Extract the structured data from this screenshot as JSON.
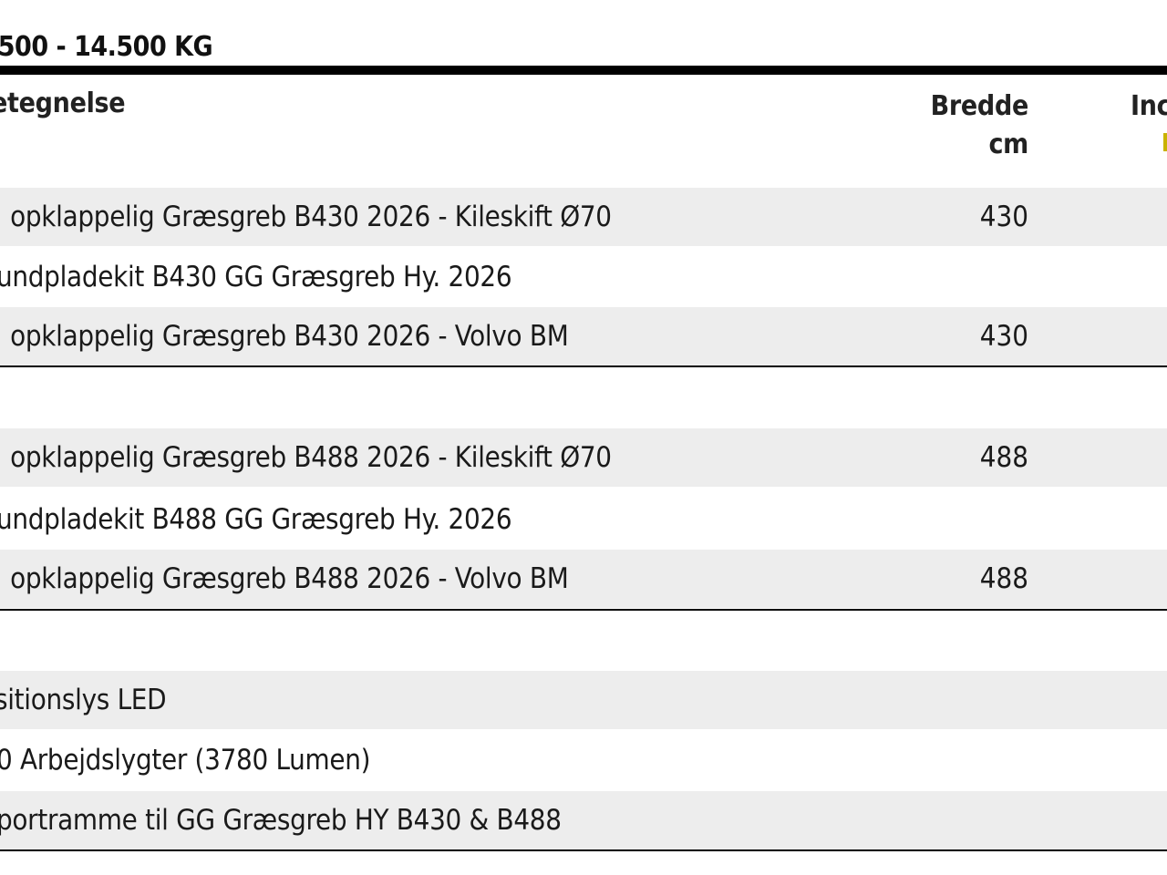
{
  "heading": ".500 - 14.500 KG",
  "columns": {
    "name": "etegnelse",
    "width_line1": "Bredde",
    "width_line2": "cm",
    "extra": "Inc"
  },
  "groups": [
    {
      "rows": [
        {
          "name": ". opklappelig Græsgreb B430 2026 - Kileskift Ø70",
          "width": "430"
        },
        {
          "name": "undpladekit B430 GG Græsgreb Hy. 2026",
          "width": ""
        },
        {
          "name": ". opklappelig Græsgreb B430 2026 - Volvo BM",
          "width": "430"
        }
      ]
    },
    {
      "rows": [
        {
          "name": ". opklappelig Græsgreb B488 2026 - Kileskift Ø70",
          "width": "488"
        },
        {
          "name": "undpladekit B488 GG Græsgreb Hy. 2026",
          "width": ""
        },
        {
          "name": ". opklappelig Græsgreb B488 2026 - Volvo BM",
          "width": "488"
        }
      ]
    },
    {
      "rows": [
        {
          "name": "sitionslys LED",
          "width": ""
        },
        {
          "name": "0 Arbejdslygter (3780 Lumen)",
          "width": ""
        },
        {
          "name": "portramme til GG Græsgreb HY B430 & B488",
          "width": ""
        }
      ]
    }
  ]
}
